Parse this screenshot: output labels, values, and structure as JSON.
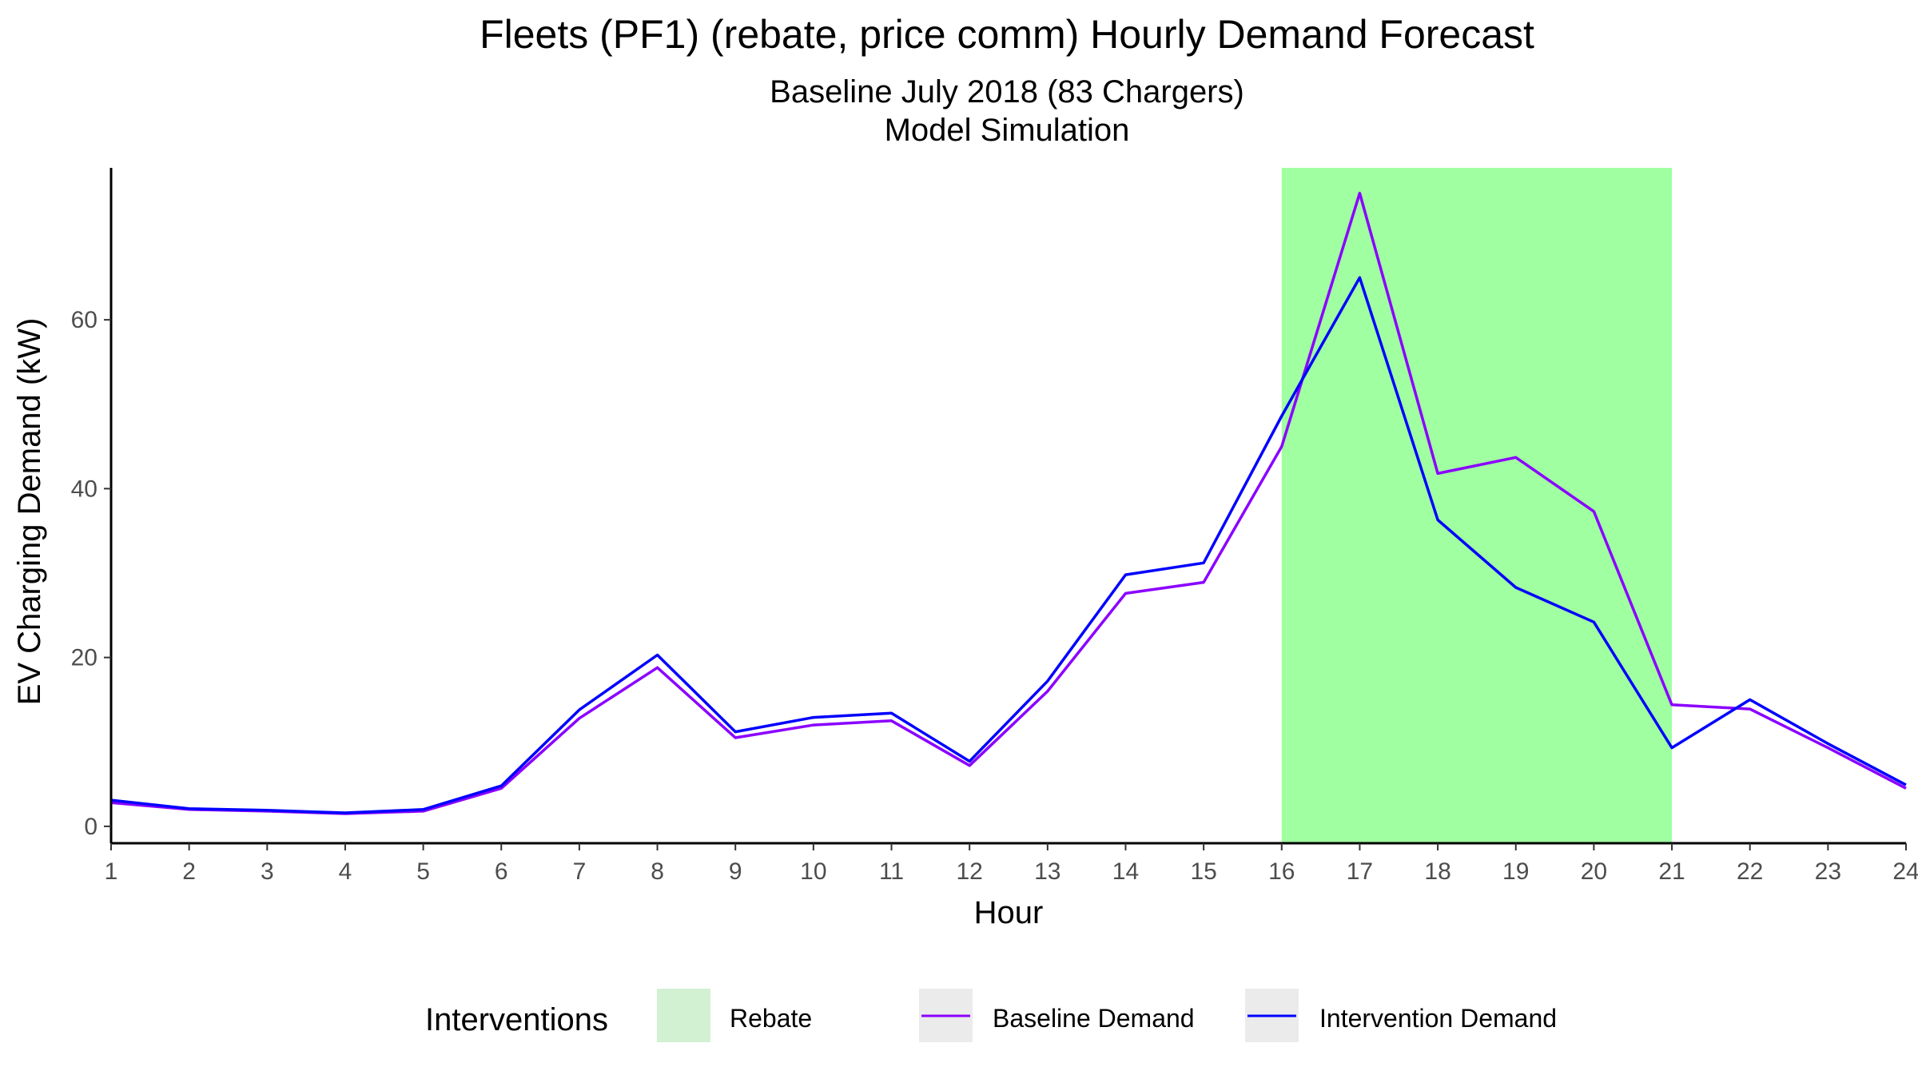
{
  "chart_data": {
    "type": "line",
    "title": "Fleets (PF1) (rebate, price comm) Hourly Demand Forecast",
    "subtitle": [
      "Baseline July 2018 (83 Chargers)",
      "Model Simulation"
    ],
    "xlabel": "Hour",
    "ylabel": "EV Charging Demand (kW)",
    "x": [
      1,
      2,
      3,
      4,
      5,
      6,
      7,
      8,
      9,
      10,
      11,
      12,
      13,
      14,
      15,
      16,
      17,
      18,
      19,
      20,
      21,
      22,
      23,
      24
    ],
    "xlim": [
      1,
      24
    ],
    "ylim": [
      -2,
      78
    ],
    "yticks": [
      0,
      20,
      40,
      60
    ],
    "grid": false,
    "series": [
      {
        "name": "Baseline Demand",
        "color": "#8b00ff",
        "values": [
          2.8,
          2.0,
          1.8,
          1.5,
          1.8,
          4.5,
          12.8,
          18.8,
          10.5,
          12.0,
          12.5,
          7.2,
          16.0,
          27.6,
          28.9,
          45.0,
          75.0,
          41.8,
          43.7,
          37.3,
          14.4,
          13.9,
          9.3,
          4.5
        ]
      },
      {
        "name": "Intervention Demand",
        "color": "#0000ff",
        "values": [
          3.1,
          2.1,
          1.9,
          1.6,
          2.0,
          4.8,
          13.8,
          20.3,
          11.2,
          12.9,
          13.4,
          7.7,
          17.2,
          29.8,
          31.2,
          48.6,
          65.0,
          36.3,
          28.3,
          24.2,
          9.3,
          15.0,
          9.8,
          4.9
        ]
      }
    ],
    "shaded_regions": [
      {
        "name": "Rebate",
        "x_start": 16,
        "x_end": 21,
        "color": "#a0ffa0"
      }
    ],
    "legend": {
      "title": "Interventions",
      "position": "bottom",
      "items": [
        {
          "label": "Rebate",
          "kind": "fill",
          "color": "#a0ffa0"
        },
        {
          "label": "Baseline Demand",
          "kind": "line",
          "color": "#8b00ff"
        },
        {
          "label": "Intervention Demand",
          "kind": "line",
          "color": "#0000ff"
        }
      ]
    }
  }
}
